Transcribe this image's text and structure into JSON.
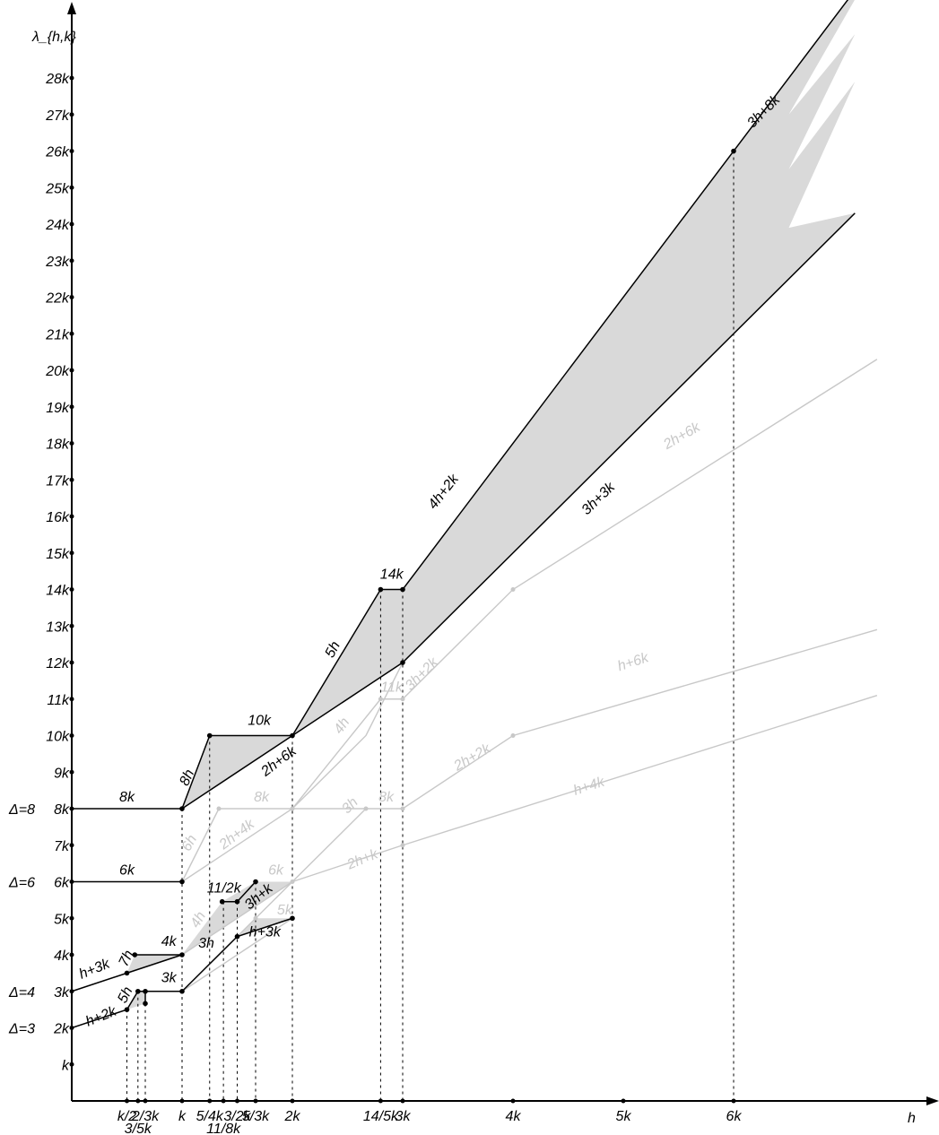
{
  "chart_data": {
    "type": "line",
    "title": "",
    "ylabel": "λ_{h,k}",
    "xlabel": "h",
    "xlim": [
      0,
      7.3
    ],
    "ylim": [
      0,
      29.5
    ],
    "x_ticks": [
      {
        "v": 0.5,
        "label": "k/2"
      },
      {
        "v": 0.6,
        "label": "3/5k"
      },
      {
        "v": 0.6667,
        "label": "2/3k"
      },
      {
        "v": 1,
        "label": "k"
      },
      {
        "v": 1.25,
        "label": "5/4k"
      },
      {
        "v": 1.375,
        "label": "11/8k"
      },
      {
        "v": 1.5,
        "label": "3/2k"
      },
      {
        "v": 1.6667,
        "label": "5/3k"
      },
      {
        "v": 2,
        "label": "2k"
      },
      {
        "v": 2.8,
        "label": "14/5k"
      },
      {
        "v": 3,
        "label": "3k"
      },
      {
        "v": 4,
        "label": "4k"
      },
      {
        "v": 5,
        "label": "5k"
      },
      {
        "v": 6,
        "label": "6k"
      }
    ],
    "y_ticks": [
      {
        "v": 1,
        "label": "k"
      },
      {
        "v": 2,
        "label": "2k"
      },
      {
        "v": 3,
        "label": "3k"
      },
      {
        "v": 4,
        "label": "4k"
      },
      {
        "v": 5,
        "label": "5k"
      },
      {
        "v": 6,
        "label": "6k"
      },
      {
        "v": 7,
        "label": "7k"
      },
      {
        "v": 8,
        "label": "8k"
      },
      {
        "v": 9,
        "label": "9k"
      },
      {
        "v": 10,
        "label": "10k"
      },
      {
        "v": 11,
        "label": "11k"
      },
      {
        "v": 12,
        "label": "12k"
      },
      {
        "v": 13,
        "label": "13k"
      },
      {
        "v": 14,
        "label": "14k"
      },
      {
        "v": 15,
        "label": "15k"
      },
      {
        "v": 16,
        "label": "16k"
      },
      {
        "v": 17,
        "label": "17k"
      },
      {
        "v": 18,
        "label": "18k"
      },
      {
        "v": 19,
        "label": "19k"
      },
      {
        "v": 20,
        "label": "20k"
      },
      {
        "v": 21,
        "label": "21k"
      },
      {
        "v": 22,
        "label": "22k"
      },
      {
        "v": 23,
        "label": "23k"
      },
      {
        "v": 24,
        "label": "24k"
      },
      {
        "v": 25,
        "label": "25k"
      },
      {
        "v": 26,
        "label": "26k"
      },
      {
        "v": 27,
        "label": "27k"
      },
      {
        "v": 28,
        "label": "28k"
      }
    ],
    "delta_labels": [
      {
        "v": 8,
        "label": "Δ=8"
      },
      {
        "v": 6,
        "label": "Δ=6"
      },
      {
        "v": 3,
        "label": "Δ=4"
      },
      {
        "v": 2,
        "label": "Δ=3"
      }
    ],
    "regions": [
      {
        "name": "delta3-region",
        "points": [
          [
            0.5,
            2.5
          ],
          [
            0.6,
            3
          ],
          [
            0.6667,
            3
          ],
          [
            0.6667,
            2.6667
          ]
        ]
      },
      {
        "name": "delta4-region",
        "points": [
          [
            0.5714,
            4
          ],
          [
            1,
            4
          ],
          [
            0.5,
            3.5
          ]
        ]
      },
      {
        "name": "delta6-region",
        "points": [
          [
            1,
            4
          ],
          [
            1.3636,
            5.4545
          ],
          [
            1.6667,
            6
          ],
          [
            2,
            6
          ],
          [
            1,
            4
          ]
        ]
      },
      {
        "name": "delta6-thin-region",
        "points": [
          [
            1.5,
            4.5
          ],
          [
            1.6667,
            5
          ],
          [
            2,
            5
          ],
          [
            1.6667,
            4.6667
          ]
        ]
      },
      {
        "name": "delta8-region",
        "points": [
          [
            1,
            8
          ],
          [
            1.25,
            10
          ],
          [
            2,
            10
          ],
          [
            2.8,
            14
          ],
          [
            3,
            14
          ],
          [
            7.3,
            31.2
          ],
          [
            6.5,
            27
          ],
          [
            7.1,
            29.2
          ],
          [
            6.5,
            25.5
          ],
          [
            7.1,
            27.9
          ],
          [
            6.5,
            23.9
          ],
          [
            7.1,
            24.3
          ],
          [
            3,
            12
          ],
          [
            2,
            10
          ],
          [
            1,
            8
          ]
        ]
      }
    ],
    "series": [
      {
        "name": "delta8-upper",
        "color": "#000000",
        "points": [
          [
            0,
            8
          ],
          [
            1,
            8
          ],
          [
            1.25,
            10
          ],
          [
            2,
            10
          ],
          [
            2.8,
            14
          ],
          [
            3,
            14
          ],
          [
            7.3,
            31.2
          ]
        ]
      },
      {
        "name": "delta8-lower",
        "color": "#000000",
        "points": [
          [
            1,
            8
          ],
          [
            2,
            10
          ],
          [
            3,
            12
          ],
          [
            7.1,
            24.3
          ]
        ]
      },
      {
        "name": "delta6-line",
        "color": "#000000",
        "points": [
          [
            0,
            6
          ],
          [
            1,
            6
          ]
        ]
      },
      {
        "name": "delta4-upper",
        "color": "#000000",
        "points": [
          [
            0.5714,
            4
          ],
          [
            1,
            4
          ]
        ]
      },
      {
        "name": "delta4-lower",
        "color": "#000000",
        "points": [
          [
            0,
            3
          ],
          [
            0.5,
            3.5
          ],
          [
            1,
            4
          ]
        ]
      },
      {
        "name": "delta3-upper",
        "color": "#000000",
        "points": [
          [
            0.6,
            3
          ],
          [
            0.6667,
            3
          ]
        ]
      },
      {
        "name": "delta3-lower",
        "color": "#000000",
        "points": [
          [
            0,
            2
          ],
          [
            0.5,
            2.5
          ],
          [
            0.6,
            3
          ]
        ]
      },
      {
        "name": "delta3-mid",
        "color": "#000000",
        "points": [
          [
            0.6667,
            3
          ],
          [
            1,
            3
          ],
          [
            1.5,
            4.5
          ],
          [
            2,
            5
          ]
        ]
      },
      {
        "name": "delta6-upper",
        "color": "#000000",
        "points": [
          [
            1.3636,
            5.4545
          ],
          [
            1.5,
            5.4545
          ],
          [
            1.6667,
            6
          ]
        ]
      },
      {
        "name": "delta3-top-step",
        "color": "#000000",
        "points": [
          [
            0.6667,
            2.6667
          ],
          [
            0.6667,
            3
          ]
        ]
      },
      {
        "name": "gray-8k",
        "color": "#c8c8c8",
        "points": [
          [
            1,
            6
          ],
          [
            1.3333,
            8
          ],
          [
            2,
            8
          ],
          [
            2.8,
            11
          ],
          [
            3,
            11
          ],
          [
            4,
            14
          ],
          [
            7.3,
            20.3
          ]
        ]
      },
      {
        "name": "gray-2h4k",
        "color": "#c8c8c8",
        "points": [
          [
            1,
            6
          ],
          [
            2,
            8
          ],
          [
            2.6667,
            10
          ],
          [
            3,
            12
          ]
        ]
      },
      {
        "name": "gray-3h",
        "color": "#c8c8c8",
        "points": [
          [
            2,
            8
          ],
          [
            2.6667,
            8
          ],
          [
            3,
            8
          ],
          [
            4,
            10
          ],
          [
            7.3,
            12.9
          ]
        ]
      },
      {
        "name": "gray-2hk",
        "color": "#c8c8c8",
        "points": [
          [
            1,
            4
          ],
          [
            2,
            6
          ],
          [
            3,
            7
          ],
          [
            7.3,
            11.1
          ]
        ]
      },
      {
        "name": "gray-delta6",
        "color": "#c8c8c8",
        "points": [
          [
            1.5,
            4.5
          ],
          [
            2,
            6
          ],
          [
            2.6667,
            8
          ]
        ]
      },
      {
        "name": "gray-low",
        "color": "#c8c8c8",
        "points": [
          [
            1,
            3
          ],
          [
            1.5,
            4
          ],
          [
            2,
            5
          ]
        ]
      }
    ],
    "points": [
      [
        1,
        8
      ],
      [
        1.25,
        10
      ],
      [
        2,
        10
      ],
      [
        2.8,
        14
      ],
      [
        3,
        14
      ],
      [
        3,
        12
      ],
      [
        6,
        26
      ],
      [
        1,
        6
      ],
      [
        1,
        4
      ],
      [
        1,
        3
      ],
      [
        0.5,
        3.5
      ],
      [
        0.5714,
        4
      ],
      [
        0.5,
        2.5
      ],
      [
        0.6,
        3
      ],
      [
        0.6667,
        3
      ],
      [
        0.6667,
        2.6667
      ],
      [
        1.3636,
        5.4545
      ],
      [
        1.5,
        5.4545
      ],
      [
        1.6667,
        6
      ],
      [
        1.5,
        4.5
      ],
      [
        2,
        5
      ]
    ],
    "gray_points": [
      [
        1.3333,
        8
      ],
      [
        2,
        8
      ],
      [
        2.6667,
        8
      ],
      [
        3,
        8
      ],
      [
        2.8,
        11
      ],
      [
        3,
        11
      ],
      [
        4,
        14
      ],
      [
        4,
        10
      ],
      [
        3,
        7
      ],
      [
        2,
        6
      ],
      [
        1.6667,
        5
      ]
    ],
    "dashed_x": [
      {
        "x": 0.5,
        "y": 2.5
      },
      {
        "x": 0.6,
        "y": 3
      },
      {
        "x": 0.6667,
        "y": 3
      },
      {
        "x": 1,
        "y": 8
      },
      {
        "x": 1.25,
        "y": 10
      },
      {
        "x": 1.375,
        "y": 5.4545
      },
      {
        "x": 1.5,
        "y": 5.4545
      },
      {
        "x": 1.6667,
        "y": 6
      },
      {
        "x": 2,
        "y": 10
      },
      {
        "x": 2.8,
        "y": 14
      },
      {
        "x": 3,
        "y": 14
      },
      {
        "x": 6,
        "y": 26
      }
    ],
    "annotations": [
      {
        "text": "8k",
        "x": 0.5,
        "y": 8.2,
        "rot": 0,
        "light": false
      },
      {
        "text": "6k",
        "x": 0.5,
        "y": 6.2,
        "rot": 0,
        "light": false
      },
      {
        "text": "4k",
        "x": 0.88,
        "y": 4.25,
        "rot": 0,
        "light": false
      },
      {
        "text": "3k",
        "x": 0.88,
        "y": 3.25,
        "rot": 0,
        "light": false
      },
      {
        "text": "7h",
        "x": 0.53,
        "y": 3.85,
        "rot": -64,
        "light": false
      },
      {
        "text": "h+3k",
        "x": 0.22,
        "y": 3.5,
        "rot": -22,
        "light": false
      },
      {
        "text": "5h",
        "x": 0.52,
        "y": 2.85,
        "rot": -64,
        "light": false
      },
      {
        "text": "h+2k",
        "x": 0.28,
        "y": 2.2,
        "rot": -22,
        "light": false
      },
      {
        "text": "8h",
        "x": 1.08,
        "y": 8.8,
        "rot": -65,
        "light": false
      },
      {
        "text": "10k",
        "x": 1.7,
        "y": 10.3,
        "rot": 0,
        "light": false
      },
      {
        "text": "2h+6k",
        "x": 1.9,
        "y": 9.2,
        "rot": -37,
        "light": false
      },
      {
        "text": "5h",
        "x": 2.4,
        "y": 12.3,
        "rot": -62,
        "light": false
      },
      {
        "text": "14k",
        "x": 2.9,
        "y": 14.3,
        "rot": 0,
        "light": false
      },
      {
        "text": "4h+2k",
        "x": 3.4,
        "y": 16.6,
        "rot": -52,
        "light": false
      },
      {
        "text": "3h+3k",
        "x": 4.8,
        "y": 16.4,
        "rot": -44,
        "light": false
      },
      {
        "text": "3h+8k",
        "x": 6.3,
        "y": 27.0,
        "rot": -45,
        "light": false
      },
      {
        "text": "11/2k",
        "x": 1.38,
        "y": 5.7,
        "rot": 0,
        "light": false
      },
      {
        "text": "3h+k",
        "x": 1.72,
        "y": 5.5,
        "rot": -40,
        "light": false
      },
      {
        "text": "3h",
        "x": 1.22,
        "y": 4.2,
        "rot": 0,
        "light": false
      },
      {
        "text": "h+3k",
        "x": 1.75,
        "y": 4.5,
        "rot": 0,
        "light": false
      },
      {
        "text": "6h",
        "x": 1.1,
        "y": 7.0,
        "rot": -60,
        "light": true
      },
      {
        "text": "2h+4k",
        "x": 1.52,
        "y": 7.2,
        "rot": -37,
        "light": true
      },
      {
        "text": "8k",
        "x": 1.72,
        "y": 8.2,
        "rot": 0,
        "light": true
      },
      {
        "text": "4h",
        "x": 1.18,
        "y": 4.9,
        "rot": -60,
        "light": true
      },
      {
        "text": "6k",
        "x": 1.85,
        "y": 6.2,
        "rot": 0,
        "light": true
      },
      {
        "text": "5k",
        "x": 1.93,
        "y": 5.1,
        "rot": 0,
        "light": true
      },
      {
        "text": "4h",
        "x": 2.48,
        "y": 10.2,
        "rot": -55,
        "light": true
      },
      {
        "text": "11k",
        "x": 2.9,
        "y": 11.2,
        "rot": 0,
        "light": true
      },
      {
        "text": "3h+2k",
        "x": 3.2,
        "y": 11.6,
        "rot": -45,
        "light": true
      },
      {
        "text": "3h",
        "x": 2.55,
        "y": 8.0,
        "rot": -45,
        "light": true
      },
      {
        "text": "8k",
        "x": 2.85,
        "y": 8.2,
        "rot": 0,
        "light": true
      },
      {
        "text": "2h+k",
        "x": 2.65,
        "y": 6.5,
        "rot": -22,
        "light": true
      },
      {
        "text": "2h+6k",
        "x": 5.55,
        "y": 18.1,
        "rot": -30,
        "light": true
      },
      {
        "text": "2h+2k",
        "x": 3.65,
        "y": 9.3,
        "rot": -30,
        "light": true
      },
      {
        "text": "h+6k",
        "x": 5.1,
        "y": 11.9,
        "rot": -18,
        "light": true
      },
      {
        "text": "h+4k",
        "x": 4.7,
        "y": 8.5,
        "rot": -18,
        "light": true
      }
    ],
    "grid": false,
    "legend": "none"
  }
}
